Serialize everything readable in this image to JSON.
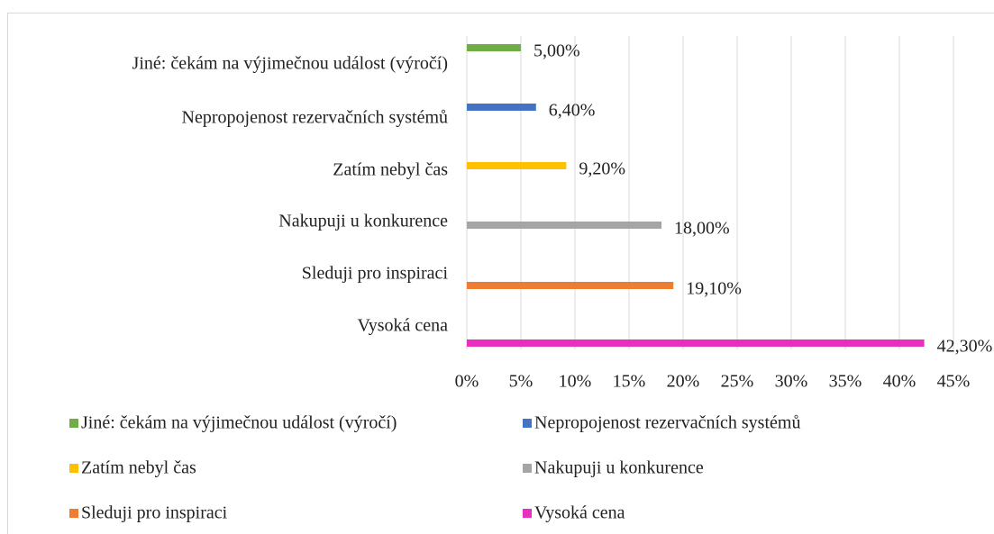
{
  "chart_data": {
    "type": "barh",
    "categories": [
      "Jiné: čekám na výjimečnou událost (výročí)",
      "Nepropojenost rezervačních systémů",
      "Zatím nebyl čas",
      "Nakupuji u konkurence",
      "Sleduji pro inspiraci",
      "Vysoká cena"
    ],
    "values": [
      5.0,
      6.4,
      9.2,
      18.0,
      19.1,
      42.3
    ],
    "value_labels": [
      "5,00%",
      "6,40%",
      "9,20%",
      "18,00%",
      "19,10%",
      "42,30%"
    ],
    "colors": [
      "#70ad47",
      "#4472c4",
      "#ffc000",
      "#a5a5a5",
      "#ed7d31",
      "#e830c0"
    ],
    "xlim": [
      0,
      45
    ],
    "xticks": [
      {
        "value": 0,
        "label": "0%"
      },
      {
        "value": 5,
        "label": "5%"
      },
      {
        "value": 10,
        "label": "10%"
      },
      {
        "value": 15,
        "label": "15%"
      },
      {
        "value": 20,
        "label": "20%"
      },
      {
        "value": 25,
        "label": "25%"
      },
      {
        "value": 30,
        "label": "30%"
      },
      {
        "value": 35,
        "label": "35%"
      },
      {
        "value": 40,
        "label": "40%"
      },
      {
        "value": 45,
        "label": "45%"
      }
    ],
    "grid": true,
    "legend": "bottom"
  }
}
